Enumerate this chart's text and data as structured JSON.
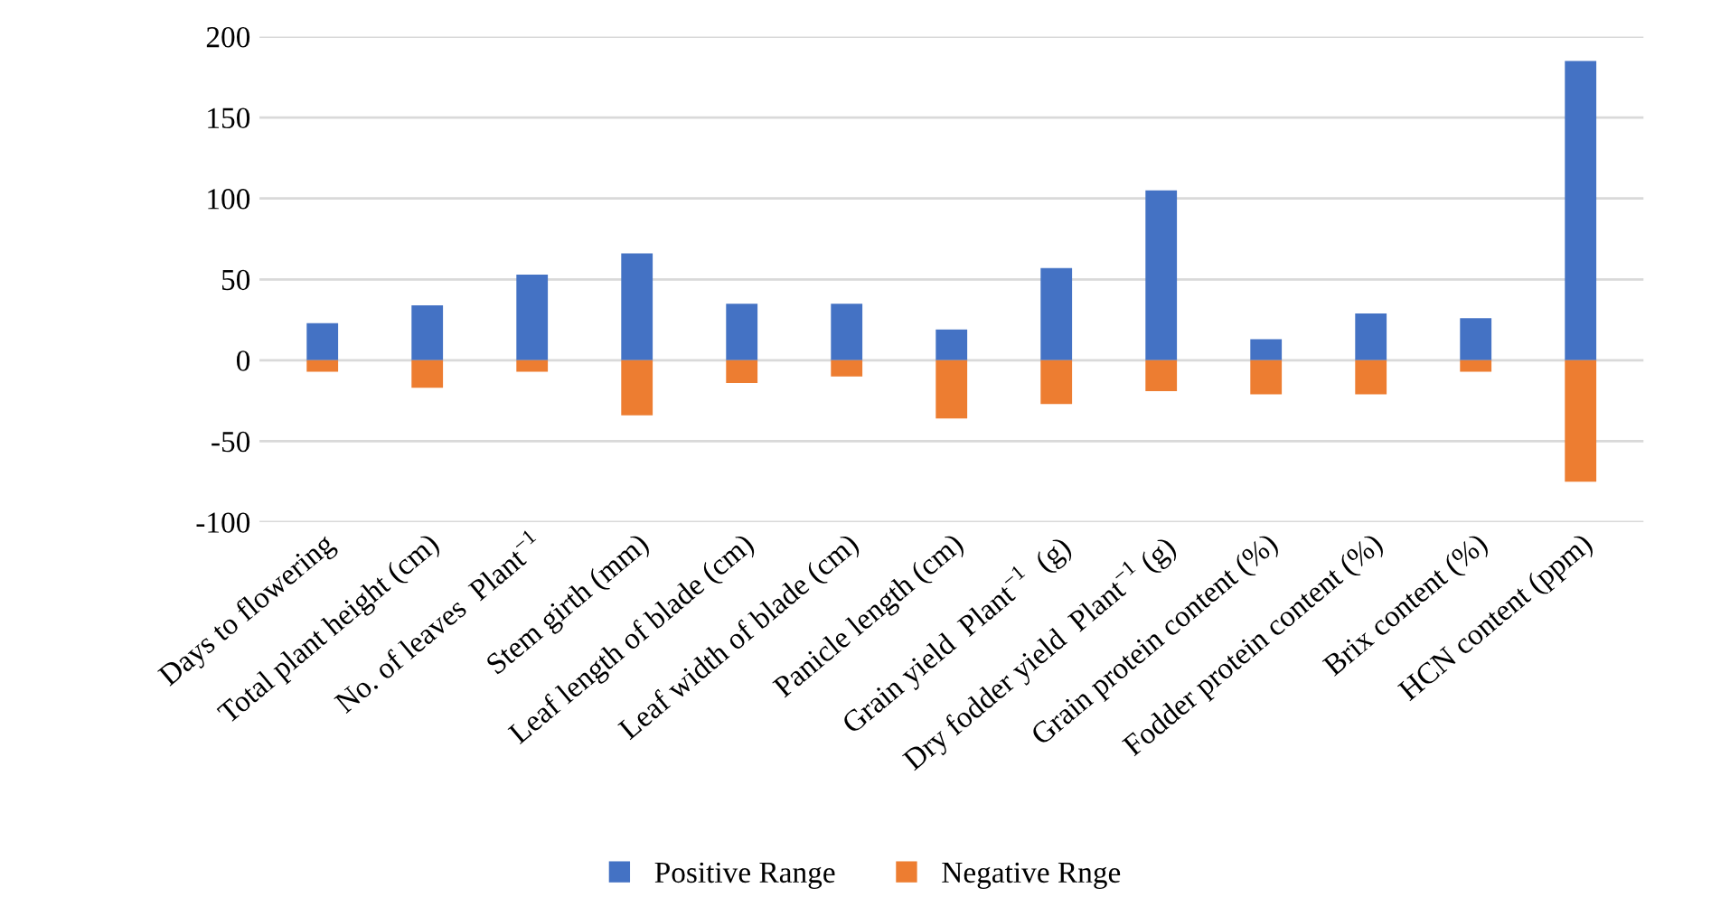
{
  "chart_data": {
    "type": "bar",
    "stacked": true,
    "categories": [
      "Days to flowering",
      "Total plant height (cm)",
      "No. of leaves  Plant$^{−1}$",
      "Stem girth (mm)",
      "Leaf length of blade (cm)",
      "Leaf width of blade (cm)",
      "Panicle length (cm)",
      "Grain yield  Plant$^{−1}$  (g)",
      "Dry fodder yield  Plant$^{−1}$ (g)",
      "Grain protein content (%)",
      "Fodder protein content (%)",
      "Brix content (%)",
      "HCN content (ppm)"
    ],
    "series": [
      {
        "name": "Positive Range",
        "color": "#4472c4",
        "values": [
          23,
          34,
          53,
          66,
          35,
          35,
          19,
          57,
          105,
          13,
          29,
          26,
          185
        ]
      },
      {
        "name": "Negative Rnge",
        "color": "#ed7d31",
        "values": [
          -7,
          -17,
          -7,
          -34,
          -14,
          -10,
          -36,
          -27,
          -19,
          -21,
          -21,
          -7,
          -75
        ]
      }
    ],
    "ylim": [
      -100,
      200
    ],
    "yticks": [
      -100,
      -50,
      0,
      50,
      100,
      150,
      200
    ],
    "grid": "y",
    "legend": "bottom"
  }
}
